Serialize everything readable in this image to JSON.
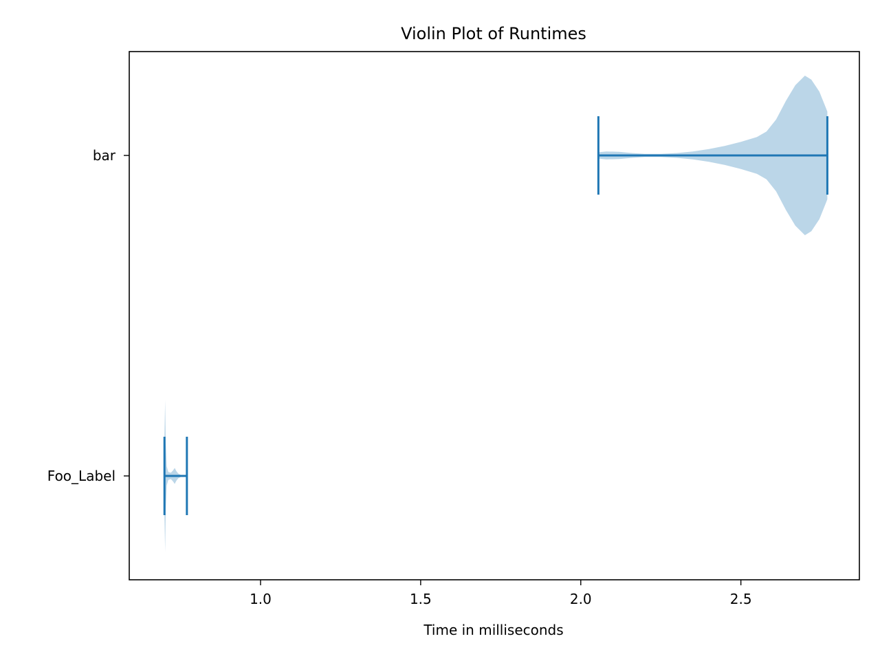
{
  "chart_data": {
    "type": "violin",
    "orientation": "horizontal",
    "title": "Violin Plot of Runtimes",
    "xlabel": "Time in milliseconds",
    "ylabel": "",
    "xlim": [
      0.59,
      2.87
    ],
    "x_ticks": [
      {
        "value": 1.0,
        "label": "1.0"
      },
      {
        "value": 1.5,
        "label": "1.5"
      },
      {
        "value": 2.0,
        "label": "2.0"
      },
      {
        "value": 2.5,
        "label": "2.5"
      }
    ],
    "categories": [
      "Foo_Label",
      "bar"
    ],
    "color": "#1f77b4",
    "fill_opacity": 0.3,
    "series": [
      {
        "name": "Foo_Label",
        "min": 0.7,
        "max": 0.77,
        "profile": [
          [
            0.7,
            0.5
          ],
          [
            0.702,
            0.95
          ],
          [
            0.704,
            0.42
          ],
          [
            0.707,
            0.12
          ],
          [
            0.712,
            0.05
          ],
          [
            0.72,
            0.04
          ],
          [
            0.727,
            0.07
          ],
          [
            0.732,
            0.1
          ],
          [
            0.737,
            0.06
          ],
          [
            0.743,
            0.03
          ],
          [
            0.752,
            0.01
          ],
          [
            0.76,
            0.005
          ],
          [
            0.77,
            0.0
          ]
        ]
      },
      {
        "name": "bar",
        "min": 2.055,
        "max": 2.77,
        "profile": [
          [
            2.055,
            0.04
          ],
          [
            2.08,
            0.05
          ],
          [
            2.12,
            0.045
          ],
          [
            2.16,
            0.03
          ],
          [
            2.2,
            0.02
          ],
          [
            2.25,
            0.02
          ],
          [
            2.3,
            0.03
          ],
          [
            2.35,
            0.05
          ],
          [
            2.4,
            0.08
          ],
          [
            2.45,
            0.12
          ],
          [
            2.5,
            0.17
          ],
          [
            2.55,
            0.23
          ],
          [
            2.58,
            0.3
          ],
          [
            2.61,
            0.45
          ],
          [
            2.64,
            0.68
          ],
          [
            2.67,
            0.88
          ],
          [
            2.7,
            1.0
          ],
          [
            2.72,
            0.95
          ],
          [
            2.745,
            0.8
          ],
          [
            2.765,
            0.6
          ],
          [
            2.77,
            0.55
          ]
        ]
      }
    ]
  }
}
